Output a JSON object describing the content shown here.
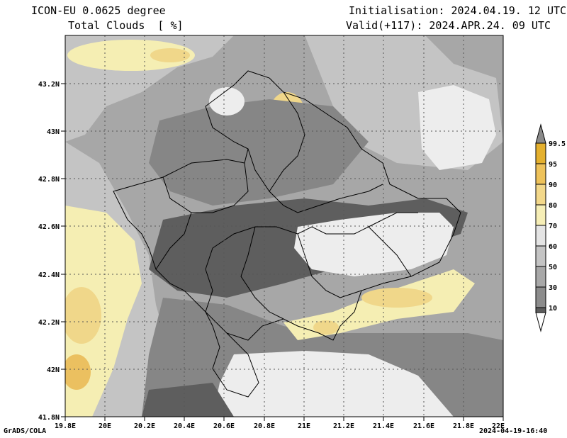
{
  "header": {
    "model_title": "ICON-EU 0.0625 degree",
    "field_title": "Total Clouds  [ %]",
    "init_text": "Initialisation: 2024.04.19. 12 UTC",
    "valid_text": "Valid(+117): 2024.APR.24. 09 UTC"
  },
  "footer": {
    "credit": "GrADS/COLA",
    "timestamp": "2024-04-19-16:40"
  },
  "map": {
    "lon_labels": [
      "19.8E",
      "20E",
      "20.2E",
      "20.4E",
      "20.6E",
      "20.8E",
      "21E",
      "21.2E",
      "21.4E",
      "21.6E",
      "21.8E",
      "22E"
    ],
    "lat_labels": [
      "43.2N",
      "43N",
      "42.8N",
      "42.6N",
      "42.4N",
      "42.2N",
      "42N",
      "41.8N"
    ],
    "lat_values": [
      43.2,
      43.0,
      42.8,
      42.6,
      42.4,
      42.2,
      42.0,
      41.8
    ]
  },
  "colorbar": {
    "labels": [
      "99.5",
      "95",
      "90",
      "80",
      "70",
      "60",
      "50",
      "30",
      "10"
    ],
    "colors": [
      "#8a8a8a",
      "#e4b02e",
      "#eec25a",
      "#f3d88a",
      "#f6eeb6",
      "#e4e4e4",
      "#c4c4c4",
      "#a8a8a8",
      "#8c8c8c",
      "#5c5c5c",
      "#ffffff"
    ]
  },
  "palette": {
    "very_low": "#ededed",
    "low": "#c4c4c4",
    "mid": "#a7a7a7",
    "high": "#868686",
    "overcast": "#5e5e5e",
    "light_yellow": "#f5eeb3",
    "yellow": "#f0d78a",
    "orange": "#ebc060"
  }
}
